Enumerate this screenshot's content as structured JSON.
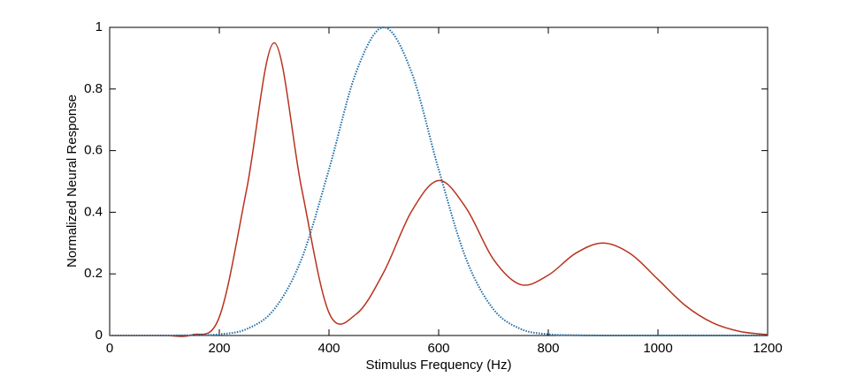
{
  "chart_data": {
    "type": "line",
    "x": [
      0,
      50,
      100,
      150,
      200,
      250,
      300,
      350,
      400,
      450,
      500,
      550,
      600,
      650,
      700,
      750,
      800,
      850,
      900,
      950,
      1000,
      1050,
      1100,
      1150,
      1200
    ],
    "series": [
      {
        "color": "#b8321e",
        "style": "solid",
        "values": [
          0,
          0,
          0,
          0.002,
          0.06,
          0.476,
          0.95,
          0.478,
          0.074,
          0.07,
          0.206,
          0.401,
          0.503,
          0.414,
          0.247,
          0.165,
          0.196,
          0.267,
          0.3,
          0.265,
          0.182,
          0.097,
          0.041,
          0.013,
          0.003
        ]
      },
      {
        "color": "#1f6fa8",
        "style": "dotted",
        "values": [
          0,
          0,
          0,
          0.001,
          0.004,
          0.021,
          0.085,
          0.249,
          0.539,
          0.857,
          1,
          0.857,
          0.539,
          0.249,
          0.085,
          0.021,
          0.004,
          0.001,
          0,
          0,
          0,
          0,
          0,
          0,
          0
        ]
      }
    ],
    "xlabel": "Stimulus Frequency (Hz)",
    "ylabel": "Normalized Neural Response",
    "xlim": [
      0,
      1200
    ],
    "xticks": [
      0,
      200,
      400,
      600,
      800,
      1000,
      1200
    ],
    "ylim": [
      0,
      1
    ],
    "yticks": [
      0,
      0.2,
      0.4,
      0.6,
      0.8,
      1
    ]
  }
}
